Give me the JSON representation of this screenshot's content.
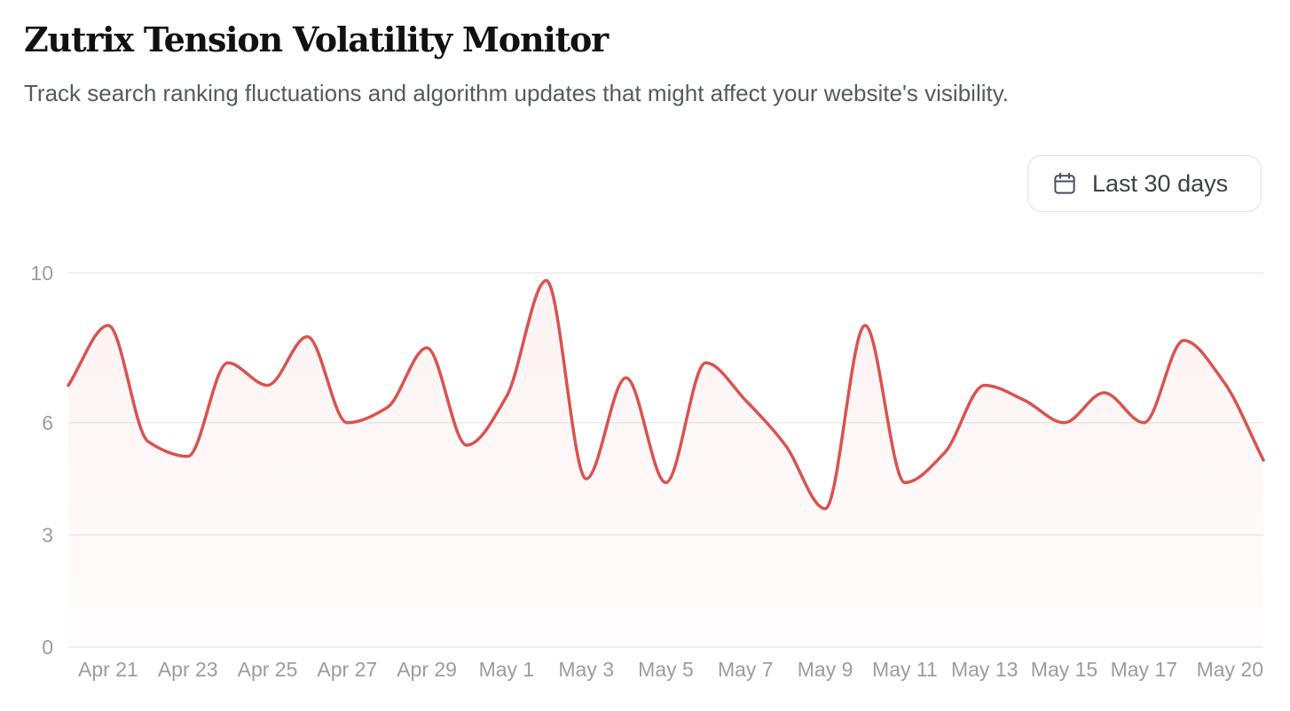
{
  "header": {
    "title": "Zutrix Tension Volatility Monitor",
    "subtitle": "Track search ranking fluctuations and algorithm updates that might affect your website's visibility."
  },
  "controls": {
    "range_label": "Last 30 days",
    "range_icon": "calendar-icon"
  },
  "colors": {
    "line": "#d9534f",
    "grid": "#ececee",
    "tick_text": "#9a9da3"
  },
  "chart_data": {
    "type": "area",
    "x": [
      "Apr 20",
      "Apr 21",
      "Apr 22",
      "Apr 23",
      "Apr 24",
      "Apr 25",
      "Apr 26",
      "Apr 27",
      "Apr 28",
      "Apr 29",
      "Apr 30",
      "May 1",
      "May 2",
      "May 3",
      "May 4",
      "May 5",
      "May 6",
      "May 7",
      "May 8",
      "May 9",
      "May 10",
      "May 11",
      "May 12",
      "May 13",
      "May 14",
      "May 15",
      "May 16",
      "May 17",
      "May 18",
      "May 19",
      "May 20"
    ],
    "y": [
      7.0,
      8.6,
      5.5,
      5.1,
      7.6,
      7.0,
      8.3,
      6.0,
      6.4,
      8.0,
      5.4,
      6.7,
      9.8,
      4.5,
      7.2,
      4.4,
      7.6,
      6.6,
      5.4,
      3.7,
      8.6,
      4.4,
      5.2,
      7.0,
      6.6,
      6.0,
      6.8,
      6.0,
      8.2,
      7.1,
      5.0
    ],
    "x_tick_labels": [
      "Apr 21",
      "Apr 23",
      "Apr 25",
      "Apr 27",
      "Apr 29",
      "May 1",
      "May 3",
      "May 5",
      "May 7",
      "May 9",
      "May 11",
      "May 13",
      "May 15",
      "May 17",
      "May 20"
    ],
    "y_ticks": [
      "0",
      "3",
      "6",
      "10"
    ],
    "ylim": [
      0,
      10
    ],
    "grid": true,
    "legend": "none",
    "title": "",
    "xlabel": "",
    "ylabel": ""
  }
}
